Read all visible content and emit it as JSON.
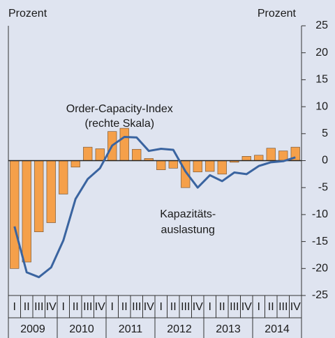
{
  "chart_data": {
    "type": "bar_line",
    "ylabel_left": "Prozent",
    "ylabel_right": "Prozent",
    "annotations": [
      {
        "text": "Order-Capacity-Index",
        "x": 8.6,
        "y": 9.5
      },
      {
        "text": "(rechte Skala)",
        "x": 8.6,
        "y": 6.8
      },
      {
        "text": "Kapazitäts-",
        "x": 14.2,
        "y": -10.0
      },
      {
        "text": "auslastung",
        "x": 14.2,
        "y": -12.9
      }
    ],
    "categories": [
      "I",
      "II",
      "III",
      "IV",
      "I",
      "II",
      "III",
      "IV",
      "I",
      "II",
      "III",
      "IV",
      "I",
      "II",
      "III",
      "IV",
      "I",
      "II",
      "III",
      "IV",
      "I",
      "II",
      "III",
      "IV"
    ],
    "years": [
      "2009",
      "2010",
      "2011",
      "2012",
      "2013",
      "2014"
    ],
    "series": [
      {
        "type": "bar",
        "color": "#f5a04a",
        "values": [
          -20,
          -18.8,
          -13.2,
          -11.5,
          -6.2,
          -1.2,
          2.5,
          2.2,
          5.4,
          6,
          2.1,
          0.4,
          -1.7,
          -1.4,
          -5,
          -2.1,
          -2,
          -2.5,
          -0.3,
          0.8,
          1,
          2.3,
          1.8,
          2.5
        ]
      },
      {
        "type": "line",
        "color": "#3a64a0",
        "values": [
          -12.2,
          -20.7,
          -21.6,
          -19.8,
          -14.8,
          -7.1,
          -3.4,
          -1.4,
          2.8,
          4.4,
          4.3,
          1.8,
          2.2,
          2,
          -2,
          -5,
          -2.7,
          -3.8,
          -2.2,
          -2.5,
          -1,
          -0.3,
          -0.1,
          0.6
        ]
      }
    ],
    "ylim": [
      -25,
      25
    ],
    "yticks": [
      25,
      20,
      15,
      10,
      5,
      0,
      -5,
      -10,
      -15,
      -20,
      -25
    ]
  }
}
